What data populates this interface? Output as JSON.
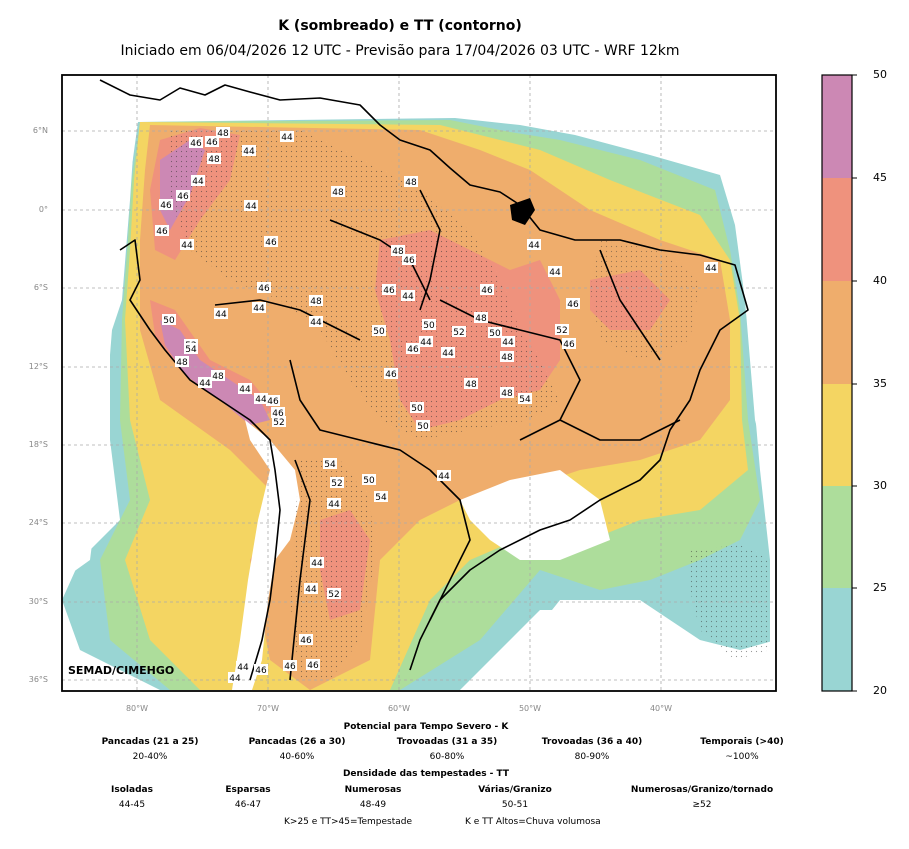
{
  "header": {
    "title": "K (sombreado) e TT (contorno)",
    "subtitle": "Iniciado em 06/04/2026 12 UTC - Previsão para 17/04/2026 03 UTC - WRF 12km"
  },
  "map": {
    "brand": "SEMAD/CIMEHGO",
    "lon_ticks": [
      "80°W",
      "70°W",
      "60°W",
      "50°W",
      "40°W"
    ],
    "lat_ticks": [
      "6°N",
      "0°",
      "6°S",
      "12°S",
      "18°S",
      "24°S",
      "30°S",
      "36°S"
    ],
    "contour_labels": [
      "44",
      "46",
      "46",
      "48",
      "48",
      "44",
      "44",
      "46",
      "46",
      "48",
      "48",
      "44",
      "46",
      "44",
      "46",
      "48",
      "46",
      "44",
      "44",
      "44",
      "46",
      "46",
      "44",
      "46",
      "48",
      "44",
      "46",
      "44",
      "50",
      "52",
      "54",
      "48",
      "44",
      "50",
      "50",
      "52",
      "48",
      "52",
      "50",
      "44",
      "46",
      "44",
      "46",
      "44",
      "48",
      "46",
      "48",
      "44",
      "48",
      "44",
      "44",
      "46",
      "46",
      "52",
      "48",
      "54",
      "50",
      "50",
      "44",
      "54",
      "52",
      "50",
      "54",
      "44",
      "44",
      "44",
      "52",
      "46",
      "44",
      "46",
      "46",
      "46",
      "44"
    ]
  },
  "colorbar": {
    "ticks": [
      "50",
      "45",
      "40",
      "35",
      "30",
      "25",
      "20"
    ],
    "colors": [
      "#cc88b4",
      "#ef927d",
      "#efad6c",
      "#f4d562",
      "#addd9b",
      "#99d5d3"
    ]
  },
  "legend": {
    "k_heading": "Potencial para Tempo Severo - K",
    "k_items": [
      {
        "label": "Pancadas (21 a 25)",
        "value": "20-40%"
      },
      {
        "label": "Pancadas (26 a 30)",
        "value": "40-60%"
      },
      {
        "label": "Trovoadas (31 a 35)",
        "value": "60-80%"
      },
      {
        "label": "Trovoadas (36 a 40)",
        "value": "80-90%"
      },
      {
        "label": "Temporais (>40)",
        "value": "~100%"
      }
    ],
    "tt_heading": "Densidade das tempestades - TT",
    "tt_items": [
      {
        "label": "Isoladas",
        "value": "44-45"
      },
      {
        "label": "Esparsas",
        "value": "46-47"
      },
      {
        "label": "Numerosas",
        "value": "48-49"
      },
      {
        "label": "Várias/Granizo",
        "value": "50-51"
      },
      {
        "label": "Numerosas/Granizo/tornado",
        "value": "≥52"
      }
    ],
    "foot_1": "K>25 e TT>45=Tempestade",
    "foot_2": "K e TT Altos=Chuva volumosa"
  }
}
